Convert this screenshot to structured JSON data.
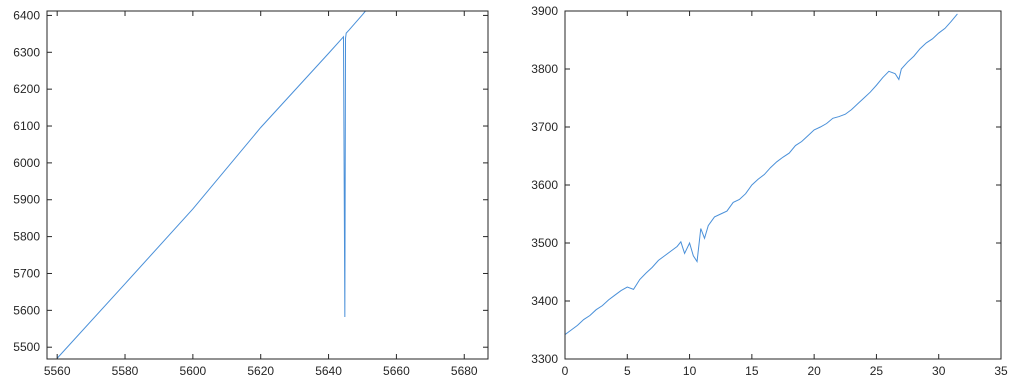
{
  "chart_data": [
    {
      "type": "line",
      "title": "",
      "xlabel": "",
      "ylabel": "",
      "xlim": [
        5557,
        5687
      ],
      "ylim": [
        5468,
        6412
      ],
      "xticks": [
        5560,
        5580,
        5600,
        5620,
        5640,
        5660,
        5680
      ],
      "yticks": [
        5500,
        5600,
        5700,
        5800,
        5900,
        6000,
        6100,
        6200,
        6300,
        6400
      ],
      "grid": false,
      "series": [
        {
          "color": "#4a90d9",
          "x": [
            5560.0,
            5580.0,
            5600.0,
            5620.0,
            5640.0,
            5644.0,
            5644.4,
            5644.8,
            5645.0,
            5645.2,
            5646.0,
            5650.0,
            5654.0
          ],
          "y": [
            5470,
            5672,
            5875,
            6096,
            6297,
            6338,
            6342,
            5582,
            6338,
            6352,
            6360,
            6402,
            6447
          ]
        }
      ]
    },
    {
      "type": "line",
      "title": "",
      "xlabel": "",
      "ylabel": "",
      "xlim": [
        0,
        35
      ],
      "ylim": [
        3300,
        3900
      ],
      "xticks": [
        0,
        5,
        10,
        15,
        20,
        25,
        30,
        35
      ],
      "yticks": [
        3300,
        3400,
        3500,
        3600,
        3700,
        3800,
        3900
      ],
      "grid": false,
      "series": [
        {
          "color": "#4a90d9",
          "x": [
            0.0,
            0.5,
            1.0,
            1.5,
            2.0,
            2.5,
            3.0,
            3.5,
            4.0,
            4.5,
            5.0,
            5.5,
            6.0,
            6.5,
            7.0,
            7.5,
            8.0,
            8.5,
            9.0,
            9.3,
            9.6,
            10.0,
            10.3,
            10.6,
            10.9,
            11.2,
            11.5,
            12.0,
            12.5,
            13.0,
            13.5,
            14.0,
            14.5,
            15.0,
            15.5,
            16.0,
            16.5,
            17.0,
            17.5,
            18.0,
            18.5,
            19.0,
            19.5,
            20.0,
            20.5,
            21.0,
            21.5,
            22.0,
            22.5,
            23.0,
            23.5,
            24.0,
            24.5,
            25.0,
            25.5,
            26.0,
            26.5,
            26.8,
            27.0,
            27.5,
            28.0,
            28.5,
            29.0,
            29.5,
            30.0,
            30.5,
            31.0,
            31.5
          ],
          "y": [
            3342,
            3350,
            3358,
            3368,
            3375,
            3385,
            3392,
            3402,
            3410,
            3418,
            3424,
            3420,
            3437,
            3448,
            3458,
            3470,
            3478,
            3486,
            3494,
            3502,
            3482,
            3500,
            3478,
            3468,
            3525,
            3508,
            3530,
            3545,
            3550,
            3555,
            3570,
            3575,
            3585,
            3600,
            3610,
            3618,
            3630,
            3640,
            3648,
            3655,
            3668,
            3675,
            3685,
            3695,
            3700,
            3706,
            3715,
            3718,
            3722,
            3730,
            3740,
            3750,
            3760,
            3772,
            3785,
            3796,
            3792,
            3782,
            3800,
            3812,
            3822,
            3835,
            3845,
            3852,
            3862,
            3870,
            3882,
            3895
          ]
        }
      ]
    }
  ]
}
